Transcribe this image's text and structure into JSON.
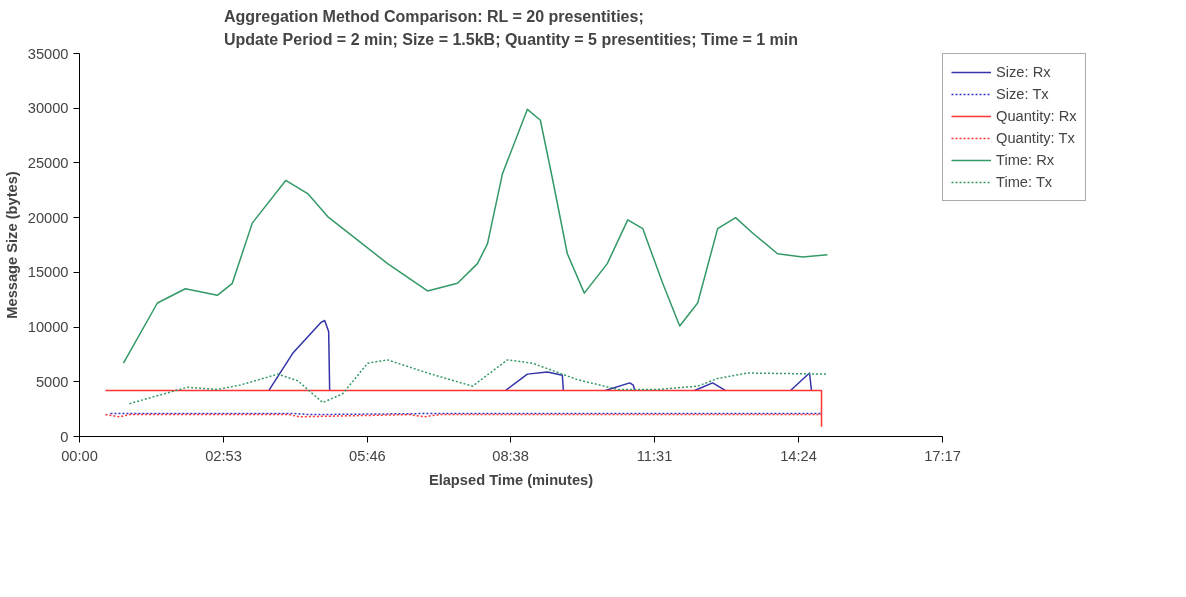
{
  "chart_data": {
    "type": "line",
    "title": "Aggregation Method Comparison: RL = 20 presentities;\nUpdate Period = 2 min; Size = 1.5kB; Quantity = 5 presentities; Time = 1 min",
    "xlabel": "Elapsed Time (minutes)",
    "ylabel": "Message Size (bytes)",
    "xlim": [
      0,
      17.2833
    ],
    "xticks": [
      {
        "value": 0,
        "label": "00:00"
      },
      {
        "value": 2.8833,
        "label": "02:53"
      },
      {
        "value": 5.7667,
        "label": "05:46"
      },
      {
        "value": 8.6333,
        "label": "08:38"
      },
      {
        "value": 11.5167,
        "label": "11:31"
      },
      {
        "value": 14.4,
        "label": "14:24"
      },
      {
        "value": 17.2833,
        "label": "17:17"
      }
    ],
    "ylim": [
      0,
      35000
    ],
    "yticks": [
      0,
      5000,
      10000,
      15000,
      20000,
      25000,
      30000,
      35000
    ],
    "grid": false,
    "legend": "right",
    "marker": "none",
    "series": [
      {
        "name": "Size: Rx",
        "color": "#3333aa",
        "line_style": "solid",
        "x": [
          3.79,
          4.27,
          4.83,
          4.91,
          4.99,
          5.01,
          5.2,
          8.53,
          8.97,
          9.37,
          9.67,
          9.69,
          9.9,
          10.53,
          11.02,
          11.09,
          11.12,
          11.3,
          12.32,
          12.68,
          12.94,
          13.1,
          14.24,
          14.62,
          14.66
        ],
        "values": [
          4200,
          7600,
          10400,
          10600,
          9600,
          4200,
          null,
          4200,
          5700,
          5900,
          5600,
          4200,
          null,
          4200,
          4900,
          4700,
          4200,
          null,
          4200,
          4900,
          4200,
          null,
          4200,
          5800,
          4200
        ]
      },
      {
        "name": "Size: Tx",
        "color": "#3333cc",
        "line_style": "dotted",
        "x": [
          0.62,
          2.0,
          4.3,
          4.6,
          7.0,
          9.0,
          11.0,
          14.86
        ],
        "values": [
          2100,
          2100,
          2100,
          2000,
          2100,
          2100,
          2100,
          2100
        ]
      },
      {
        "name": "Quantity: Rx",
        "color": "#ff3333",
        "line_style": "solid",
        "x": [
          0.52,
          14.86,
          14.86
        ],
        "values": [
          4200,
          4200,
          900
        ]
      },
      {
        "name": "Quantity: Tx",
        "color": "#ff3333",
        "line_style": "dotted",
        "x": [
          0.52,
          0.8,
          1.0,
          4.2,
          4.4,
          6.6,
          6.9,
          7.2,
          14.86
        ],
        "values": [
          2000,
          1800,
          2000,
          2000,
          1800,
          2000,
          1800,
          2000,
          2000
        ]
      },
      {
        "name": "Time: Rx",
        "color": "#339966",
        "line_style": "solid",
        "x": [
          0.88,
          1.56,
          2.12,
          2.76,
          3.06,
          3.46,
          4.13,
          4.57,
          4.97,
          6.17,
          6.97,
          7.57,
          7.97,
          8.17,
          8.47,
          8.97,
          9.23,
          9.47,
          9.77,
          10.11,
          10.57,
          10.98,
          11.28,
          11.68,
          12.02,
          12.38,
          12.78,
          13.14,
          13.48,
          13.98,
          14.48,
          14.98
        ],
        "values": [
          6700,
          12200,
          13500,
          12900,
          14000,
          19500,
          23400,
          22200,
          20100,
          15800,
          13300,
          14000,
          15800,
          17600,
          24000,
          29900,
          28900,
          23600,
          16700,
          13100,
          15800,
          19800,
          19000,
          14000,
          10100,
          12200,
          19000,
          20000,
          18600,
          16700,
          16400,
          16600
        ]
      },
      {
        "name": "Time: Tx",
        "color": "#339966",
        "line_style": "dotted",
        "x": [
          1.0,
          2.16,
          2.76,
          3.22,
          3.97,
          4.37,
          4.87,
          5.27,
          5.77,
          6.17,
          6.97,
          7.87,
          8.57,
          9.07,
          9.97,
          10.78,
          11.58,
          12.38,
          12.78,
          13.38,
          14.98
        ],
        "values": [
          3000,
          4500,
          4300,
          4700,
          5700,
          5100,
          3100,
          3900,
          6700,
          7000,
          5800,
          4600,
          7000,
          6700,
          5200,
          4300,
          4300,
          4600,
          5300,
          5800,
          5700
        ]
      }
    ]
  }
}
